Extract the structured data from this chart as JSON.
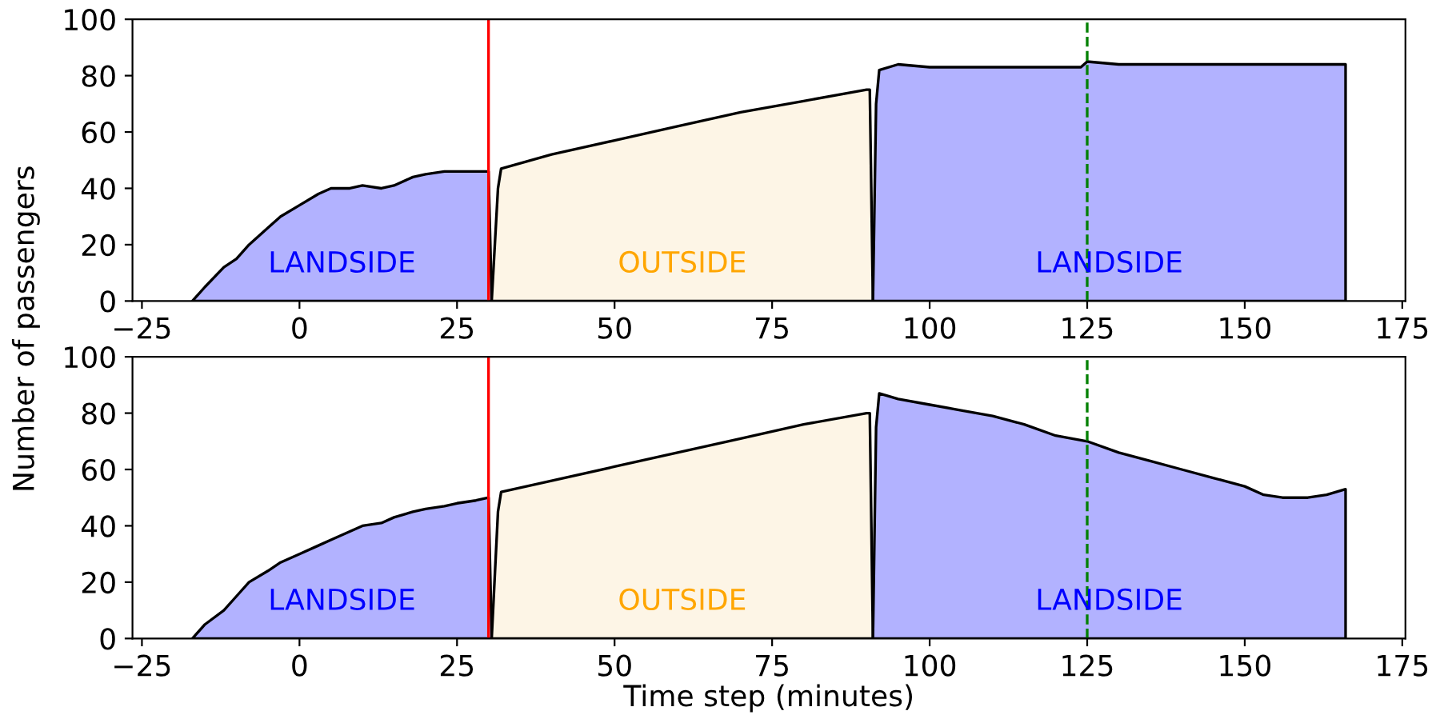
{
  "chart_data": [
    {
      "type": "area",
      "ylabel": "Number of passengers",
      "xlim": [
        -26.5,
        175.5
      ],
      "ylim": [
        0,
        100
      ],
      "xticks": [
        {
          "value": -25,
          "label": "−25"
        },
        0,
        25,
        50,
        75,
        100,
        125,
        150,
        175
      ],
      "yticks": [
        0,
        20,
        40,
        60,
        80,
        100
      ],
      "grid": false,
      "legend": false,
      "series": [
        {
          "color": "#b2b2ff",
          "x": [
            -17,
            -15,
            -12,
            -10,
            -8,
            -5,
            -3,
            0,
            3,
            5,
            8,
            10,
            13,
            15,
            18,
            20,
            23,
            25,
            28,
            30,
            30.5
          ],
          "values": [
            0,
            5,
            12,
            15,
            20,
            26,
            30,
            34,
            38,
            40,
            40,
            41,
            40,
            41,
            44,
            45,
            46,
            46,
            46,
            46,
            0
          ]
        },
        {
          "color": "#fdf5e6",
          "x": [
            30.5,
            31.5,
            32,
            40,
            50,
            60,
            70,
            80,
            90,
            90.5,
            91
          ],
          "values": [
            0,
            40,
            47,
            52,
            57,
            62,
            67,
            71,
            75,
            75,
            0
          ]
        },
        {
          "color": "#b2b2ff",
          "x": [
            91,
            91.5,
            92,
            95,
            100,
            105,
            110,
            115,
            120,
            124,
            125,
            130,
            140,
            150,
            160,
            166
          ],
          "values": [
            0,
            70,
            82,
            84,
            83,
            83,
            83,
            83,
            83,
            83,
            85,
            84,
            84,
            84,
            84,
            84
          ]
        }
      ],
      "ref_lines": [
        {
          "axis": "x",
          "value": 30,
          "color": "#ff0000",
          "line_style": "solid"
        },
        {
          "axis": "x",
          "value": 125,
          "color": "#008000",
          "line_style": "dashed"
        }
      ],
      "annotations": [
        "LANDSIDE",
        "OUTSIDE",
        "LANDSIDE"
      ]
    },
    {
      "type": "area",
      "xlabel": "Time step (minutes)",
      "xlim": [
        -26.5,
        175.5
      ],
      "ylim": [
        0,
        100
      ],
      "xticks": [
        {
          "value": -25,
          "label": "−25"
        },
        0,
        25,
        50,
        75,
        100,
        125,
        150,
        175
      ],
      "yticks": [
        0,
        20,
        40,
        60,
        80,
        100
      ],
      "grid": false,
      "legend": false,
      "series": [
        {
          "color": "#b2b2ff",
          "x": [
            -17,
            -15,
            -12,
            -10,
            -8,
            -5,
            -3,
            0,
            3,
            5,
            8,
            10,
            13,
            15,
            18,
            20,
            23,
            25,
            28,
            30,
            30.5
          ],
          "values": [
            0,
            5,
            10,
            15,
            20,
            24,
            27,
            30,
            33,
            35,
            38,
            40,
            41,
            43,
            45,
            46,
            47,
            48,
            49,
            50,
            0
          ]
        },
        {
          "color": "#fdf5e6",
          "x": [
            30.5,
            31.5,
            32,
            40,
            50,
            60,
            70,
            80,
            90,
            90.5,
            91
          ],
          "values": [
            0,
            45,
            52,
            56,
            61,
            66,
            71,
            76,
            80,
            80,
            0
          ]
        },
        {
          "color": "#b2b2ff",
          "x": [
            91,
            91.5,
            92,
            95,
            100,
            105,
            110,
            115,
            120,
            125,
            130,
            135,
            140,
            145,
            150,
            153,
            156,
            160,
            163,
            166
          ],
          "values": [
            0,
            75,
            87,
            85,
            83,
            81,
            79,
            76,
            72,
            70,
            66,
            63,
            60,
            57,
            54,
            51,
            50,
            50,
            51,
            53
          ]
        }
      ],
      "ref_lines": [
        {
          "axis": "x",
          "value": 30,
          "color": "#ff0000",
          "line_style": "solid"
        },
        {
          "axis": "x",
          "value": 125,
          "color": "#008000",
          "line_style": "dashed"
        }
      ],
      "annotations": [
        "LANDSIDE",
        "OUTSIDE",
        "LANDSIDE"
      ]
    }
  ]
}
